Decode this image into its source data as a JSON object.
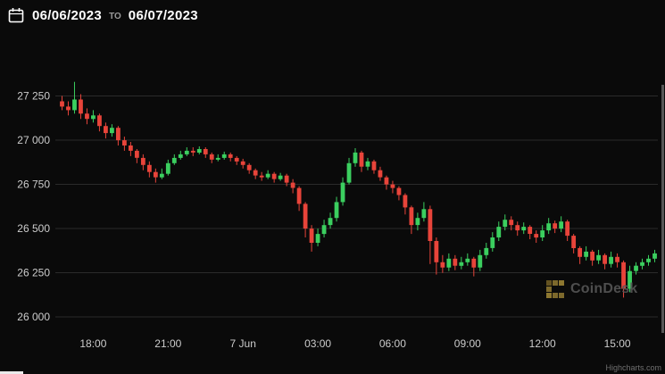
{
  "header": {
    "from_date": "06/06/2023",
    "separator": "TO",
    "to_date": "06/07/2023"
  },
  "watermark": {
    "brand": "CoinDesk"
  },
  "credits": {
    "label": "Highcharts.com"
  },
  "colors": {
    "background": "#0a0a0a",
    "up": "#3bcf5f",
    "down": "#e8443a",
    "grid": "#2b2b2b",
    "axis_text": "#cccccc"
  },
  "chart_data": {
    "type": "candlestick",
    "title": "",
    "xlabel": "",
    "ylabel": "",
    "interval": "15m",
    "legend": "off",
    "grid": "horizontal",
    "y_ticks": [
      26000,
      26250,
      26500,
      26750,
      27000,
      27250
    ],
    "y_tick_labels": [
      "26 000",
      "26 250",
      "26 500",
      "26 750",
      "27 000",
      "27 250"
    ],
    "ylim": [
      25900,
      27500
    ],
    "x_tick_labels": [
      "18:00",
      "21:00",
      "7 Jun",
      "03:00",
      "06:00",
      "09:00",
      "12:00",
      "15:00"
    ],
    "x_tick_indices": [
      5,
      17,
      29,
      41,
      53,
      65,
      77,
      89
    ],
    "ohlc": [
      [
        27220,
        27250,
        27170,
        27190
      ],
      [
        27190,
        27220,
        27140,
        27170
      ],
      [
        27170,
        27330,
        27150,
        27230
      ],
      [
        27230,
        27260,
        27120,
        27150
      ],
      [
        27150,
        27180,
        27090,
        27120
      ],
      [
        27120,
        27170,
        27100,
        27140
      ],
      [
        27140,
        27150,
        27050,
        27080
      ],
      [
        27080,
        27100,
        27010,
        27040
      ],
      [
        27040,
        27090,
        27020,
        27070
      ],
      [
        27070,
        27080,
        26970,
        27000
      ],
      [
        27000,
        27020,
        26940,
        26970
      ],
      [
        26970,
        26990,
        26910,
        26940
      ],
      [
        26940,
        26950,
        26870,
        26900
      ],
      [
        26900,
        26920,
        26830,
        26860
      ],
      [
        26860,
        26880,
        26790,
        26820
      ],
      [
        26820,
        26840,
        26760,
        26790
      ],
      [
        26790,
        26840,
        26780,
        26810
      ],
      [
        26810,
        26890,
        26800,
        26870
      ],
      [
        26870,
        26920,
        26860,
        26900
      ],
      [
        26900,
        26940,
        26890,
        26920
      ],
      [
        26920,
        26960,
        26910,
        26940
      ],
      [
        26940,
        26960,
        26910,
        26930
      ],
      [
        26930,
        26965,
        26920,
        26950
      ],
      [
        26950,
        26960,
        26900,
        26920
      ],
      [
        26920,
        26930,
        26870,
        26890
      ],
      [
        26890,
        26920,
        26880,
        26900
      ],
      [
        26900,
        26935,
        26890,
        26920
      ],
      [
        26920,
        26930,
        26880,
        26900
      ],
      [
        26900,
        26910,
        26860,
        26880
      ],
      [
        26880,
        26895,
        26840,
        26860
      ],
      [
        26860,
        26870,
        26810,
        26830
      ],
      [
        26830,
        26840,
        26780,
        26800
      ],
      [
        26800,
        26820,
        26770,
        26790
      ],
      [
        26790,
        26830,
        26780,
        26810
      ],
      [
        26810,
        26820,
        26760,
        26780
      ],
      [
        26780,
        26815,
        26770,
        26800
      ],
      [
        26800,
        26810,
        26740,
        26760
      ],
      [
        26760,
        26780,
        26700,
        26730
      ],
      [
        26730,
        26740,
        26600,
        26640
      ],
      [
        26640,
        26650,
        26450,
        26500
      ],
      [
        26500,
        26520,
        26370,
        26420
      ],
      [
        26420,
        26500,
        26400,
        26470
      ],
      [
        26470,
        26550,
        26450,
        26520
      ],
      [
        26520,
        26590,
        26500,
        26560
      ],
      [
        26560,
        26680,
        26540,
        26650
      ],
      [
        26650,
        26790,
        26630,
        26760
      ],
      [
        26760,
        26900,
        26750,
        26870
      ],
      [
        26870,
        26955,
        26850,
        26930
      ],
      [
        26930,
        26940,
        26820,
        26850
      ],
      [
        26850,
        26900,
        26830,
        26880
      ],
      [
        26880,
        26890,
        26810,
        26830
      ],
      [
        26830,
        26850,
        26770,
        26790
      ],
      [
        26790,
        26800,
        26720,
        26750
      ],
      [
        26750,
        26770,
        26700,
        26730
      ],
      [
        26730,
        26740,
        26660,
        26690
      ],
      [
        26690,
        26700,
        26580,
        26620
      ],
      [
        26620,
        26630,
        26470,
        26520
      ],
      [
        26520,
        26590,
        26490,
        26560
      ],
      [
        26560,
        26650,
        26540,
        26610
      ],
      [
        26610,
        26630,
        26300,
        26430
      ],
      [
        26430,
        26450,
        26240,
        26310
      ],
      [
        26310,
        26350,
        26250,
        26280
      ],
      [
        26280,
        26360,
        26260,
        26330
      ],
      [
        26330,
        26350,
        26265,
        26290
      ],
      [
        26290,
        26340,
        26270,
        26310
      ],
      [
        26310,
        26360,
        26290,
        26330
      ],
      [
        26330,
        26340,
        26230,
        26280
      ],
      [
        26280,
        26380,
        26260,
        26350
      ],
      [
        26350,
        26420,
        26330,
        26390
      ],
      [
        26390,
        26480,
        26370,
        26450
      ],
      [
        26450,
        26540,
        26430,
        26510
      ],
      [
        26510,
        26580,
        26490,
        26550
      ],
      [
        26550,
        26570,
        26490,
        26520
      ],
      [
        26520,
        26540,
        26460,
        26490
      ],
      [
        26490,
        26535,
        26470,
        26510
      ],
      [
        26510,
        26520,
        26440,
        26470
      ],
      [
        26470,
        26490,
        26420,
        26450
      ],
      [
        26450,
        26520,
        26430,
        26490
      ],
      [
        26490,
        26560,
        26470,
        26530
      ],
      [
        26530,
        26545,
        26475,
        26500
      ],
      [
        26500,
        26570,
        26480,
        26540
      ],
      [
        26540,
        26550,
        26430,
        26460
      ],
      [
        26460,
        26470,
        26360,
        26390
      ],
      [
        26390,
        26400,
        26300,
        26340
      ],
      [
        26340,
        26400,
        26320,
        26370
      ],
      [
        26370,
        26380,
        26290,
        26320
      ],
      [
        26320,
        26380,
        26300,
        26350
      ],
      [
        26350,
        26360,
        26270,
        26300
      ],
      [
        26300,
        26370,
        26280,
        26340
      ],
      [
        26340,
        26360,
        26280,
        26310
      ],
      [
        26310,
        26320,
        26110,
        26160
      ],
      [
        26160,
        26290,
        26140,
        26260
      ],
      [
        26260,
        26310,
        26240,
        26290
      ],
      [
        26290,
        26330,
        26270,
        26310
      ],
      [
        26310,
        26350,
        26290,
        26330
      ],
      [
        26330,
        26380,
        26310,
        26360
      ]
    ]
  }
}
